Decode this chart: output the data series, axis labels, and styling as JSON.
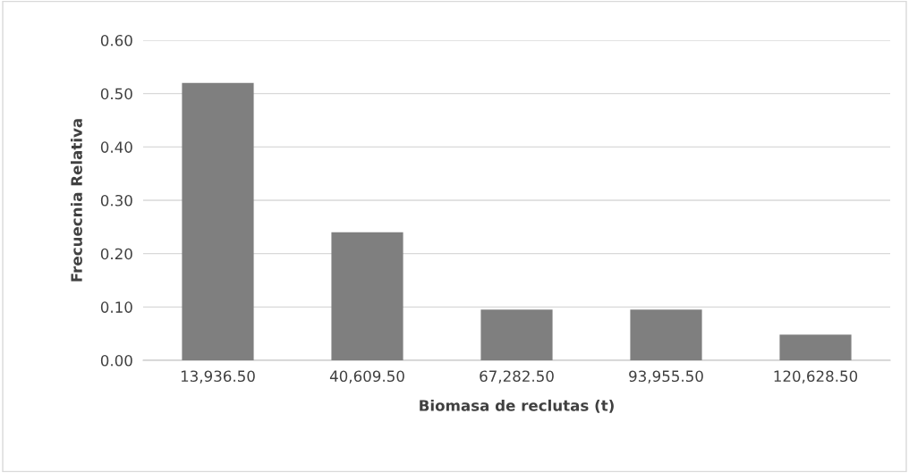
{
  "chart_data": {
    "type": "bar",
    "xlabel": "Biomasa de reclutas (t)",
    "ylabel": "Frecuecnia Relativa",
    "categories": [
      "13,936.50",
      "40,609.50",
      "67,282.50",
      "93,955.50",
      "120,628.50"
    ],
    "values": [
      0.52,
      0.24,
      0.095,
      0.095,
      0.048
    ],
    "color": "#7f7f7f",
    "ylim": [
      0,
      0.6
    ],
    "yticks": [
      {
        "value": 0,
        "label": "0.00"
      },
      {
        "value": 0.1,
        "label": "0.10"
      },
      {
        "value": 0.2,
        "label": "0.20"
      },
      {
        "value": 0.3,
        "label": "0.30"
      },
      {
        "value": 0.4,
        "label": "0.40"
      },
      {
        "value": 0.5,
        "label": "0.50"
      },
      {
        "value": 0.6,
        "label": "0.60"
      }
    ],
    "grid": "y",
    "legend": false
  }
}
